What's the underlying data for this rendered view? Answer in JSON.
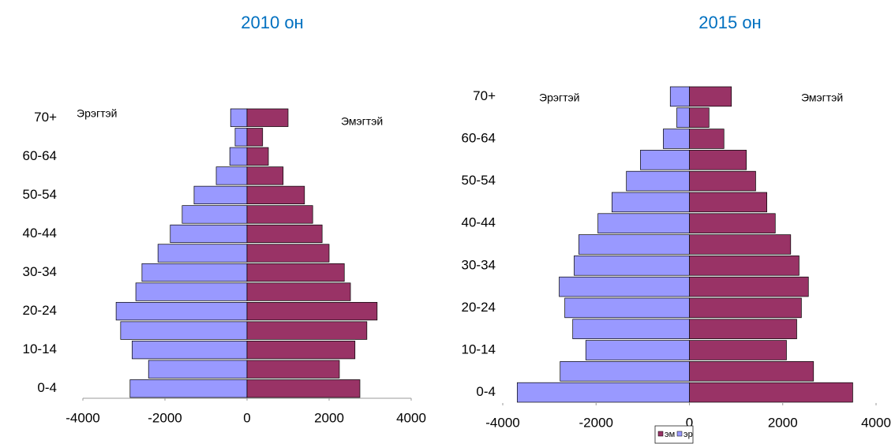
{
  "chart_data": [
    {
      "type": "bar",
      "orientation": "horizontal",
      "title": "2010 он",
      "categories": [
        "0-4",
        null,
        "10-14",
        null,
        "20-24",
        null,
        "30-34",
        null,
        "40-44",
        null,
        "50-54",
        null,
        "60-64",
        null,
        "70+"
      ],
      "series": [
        {
          "color": "#9999ff",
          "values": [
            -2850,
            -2400,
            -2800,
            -3080,
            -3190,
            -2710,
            -2560,
            -2170,
            -1870,
            -1580,
            -1290,
            -750,
            -420,
            -290,
            -400
          ]
        },
        {
          "color": "#993366",
          "values": [
            2750,
            2250,
            2630,
            2920,
            3170,
            2520,
            2370,
            2000,
            1830,
            1600,
            1400,
            880,
            520,
            380,
            1000
          ]
        }
      ],
      "annotations": [
        "Эрэгтэй",
        "Эмэгтэй"
      ],
      "xlim": [
        -4000,
        4000
      ],
      "xticks": [
        -4000,
        -2000,
        0,
        2000,
        4000
      ],
      "legend": false
    },
    {
      "type": "bar",
      "orientation": "horizontal",
      "title": "2015 он",
      "categories": [
        "0-4",
        null,
        "10-14",
        null,
        "20-24",
        null,
        "30-34",
        null,
        "40-44",
        null,
        "50-54",
        null,
        "60-64",
        null,
        "70+"
      ],
      "series": [
        {
          "name": "эм",
          "color": "#993366",
          "values": [
            3500,
            2660,
            2080,
            2300,
            2400,
            2550,
            2350,
            2170,
            1840,
            1660,
            1420,
            1220,
            740,
            420,
            900
          ]
        },
        {
          "name": "эр",
          "color": "#9999ff",
          "values": [
            -3690,
            -2770,
            -2220,
            -2500,
            -2670,
            -2790,
            -2470,
            -2370,
            -1960,
            -1660,
            -1350,
            -1050,
            -560,
            -270,
            -410
          ]
        }
      ],
      "annotations": [
        "Эрэгтэй",
        "Эмэгтэй"
      ],
      "xlim": [
        -4000,
        4000
      ],
      "xticks": [
        -4000,
        -2000,
        0,
        2000,
        4000
      ],
      "legend": "bottom"
    }
  ]
}
